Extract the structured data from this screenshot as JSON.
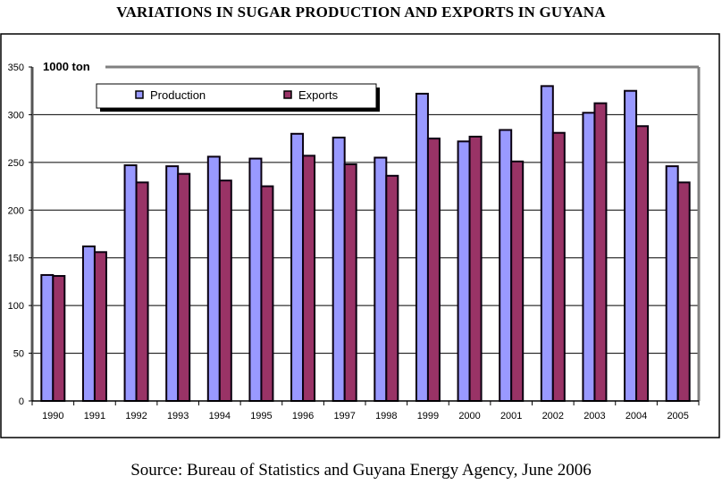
{
  "title": "VARIATIONS IN SUGAR PRODUCTION AND EXPORTS IN GUYANA",
  "source": "Source: Bureau of Statistics and Guyana Energy Agency, June 2006",
  "chart_data": {
    "type": "bar",
    "title": "VARIATIONS IN SUGAR PRODUCTION AND EXPORTS IN GUYANA",
    "xlabel": "",
    "ylabel": "1000 ton",
    "ylim": [
      0,
      350
    ],
    "yticks": [
      0,
      50,
      100,
      150,
      200,
      250,
      300,
      350
    ],
    "grid": true,
    "legend_position": "top-left",
    "categories": [
      "1990",
      "1991",
      "1992",
      "1993",
      "1994",
      "1995",
      "1996",
      "1997",
      "1998",
      "1999",
      "2000",
      "2001",
      "2002",
      "2003",
      "2004",
      "2005"
    ],
    "series": [
      {
        "name": "Production",
        "color": "#9999ff",
        "values": [
          132,
          162,
          247,
          246,
          256,
          254,
          280,
          276,
          255,
          322,
          272,
          284,
          330,
          302,
          325,
          246
        ]
      },
      {
        "name": "Exports",
        "color": "#993366",
        "values": [
          131,
          156,
          229,
          238,
          231,
          225,
          257,
          248,
          236,
          275,
          277,
          251,
          281,
          312,
          288,
          229
        ]
      }
    ]
  }
}
